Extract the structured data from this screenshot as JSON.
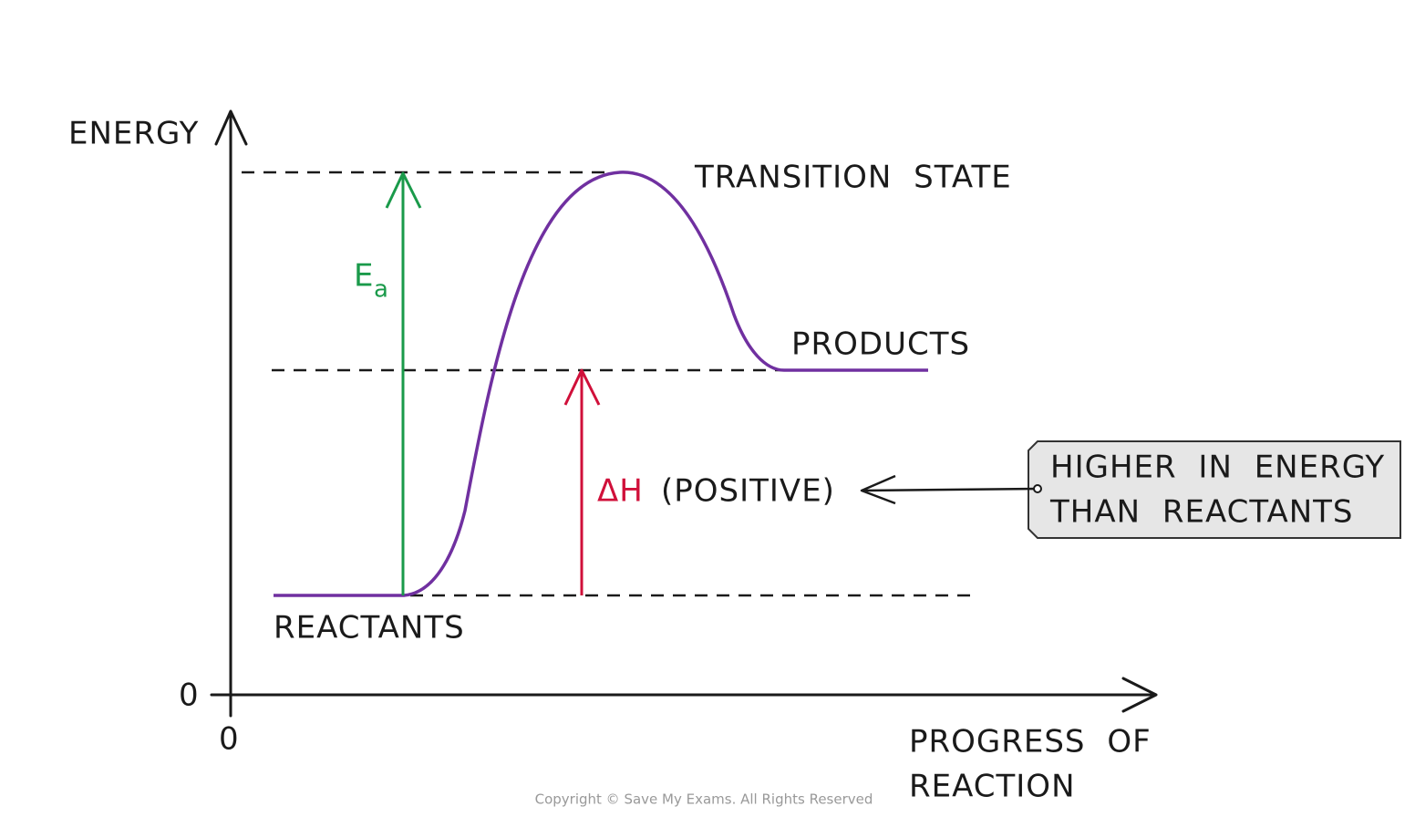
{
  "axes": {
    "y_label": "ENERGY",
    "y_zero": "0",
    "x_zero": "0",
    "x_label": [
      "PROGRESS OF",
      "REACTION"
    ]
  },
  "labels": {
    "transition_state": "TRANSITION STATE",
    "products": "PRODUCTS",
    "reactants": "REACTANTS",
    "activation_energy": {
      "main": "E",
      "sub": "a"
    },
    "enthalpy": "ΔH",
    "enthalpy_sign": "(POSITIVE)"
  },
  "callout": [
    "HIGHER IN ENERGY",
    "THAN REACTANTS"
  ],
  "copyright": "Copyright © Save My Exams. All Rights Reserved"
}
